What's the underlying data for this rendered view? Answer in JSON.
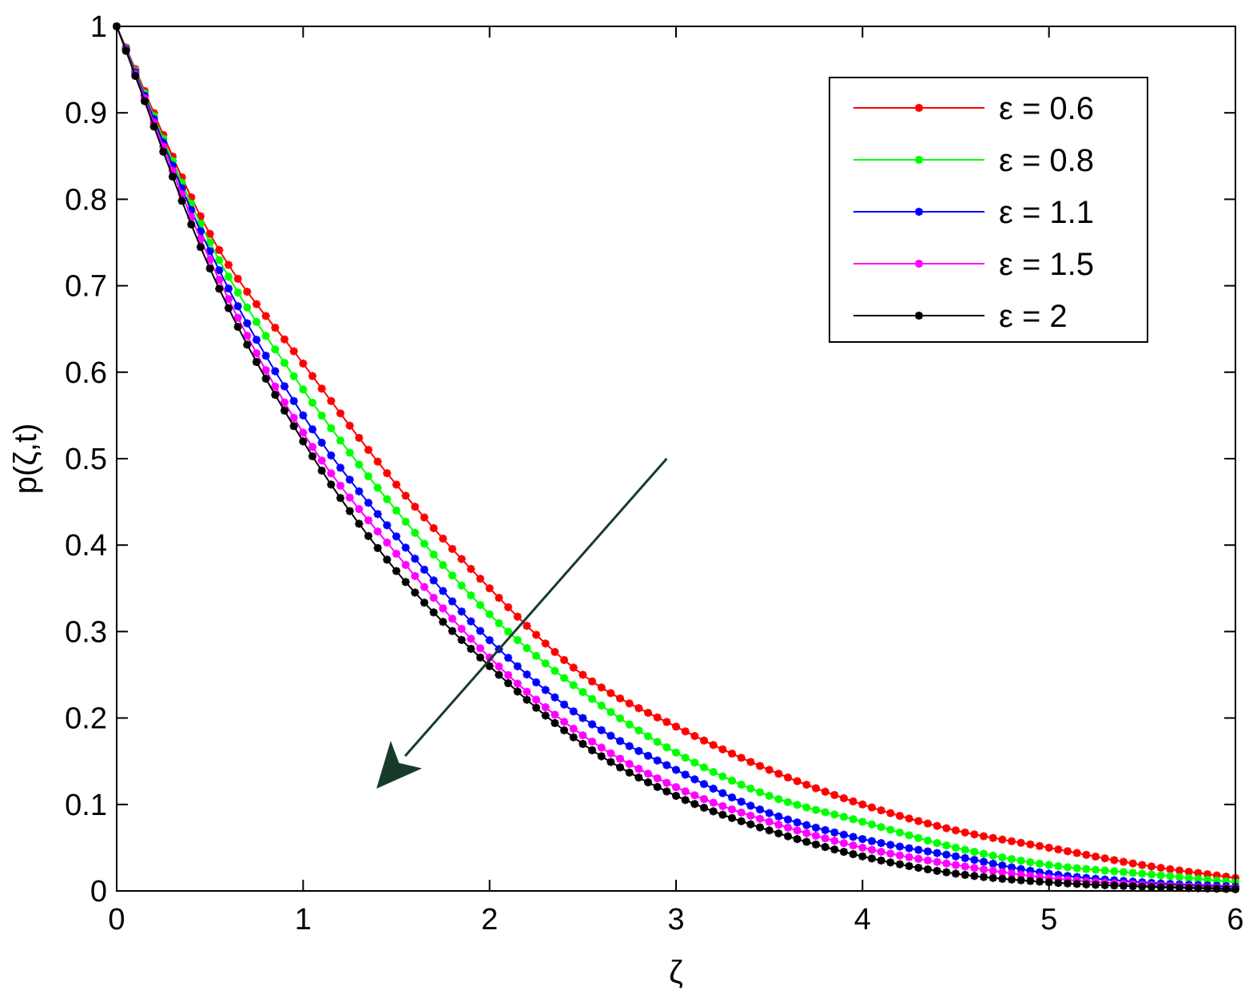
{
  "chart_data": {
    "type": "line",
    "xlabel": "ζ",
    "ylabel": "p(ζ,t)",
    "xlim": [
      0,
      6
    ],
    "ylim": [
      0,
      1
    ],
    "xticks": [
      "0",
      "1",
      "2",
      "3",
      "4",
      "5",
      "6"
    ],
    "yticks": [
      "0",
      "0.1",
      "0.2",
      "0.3",
      "0.4",
      "0.5",
      "0.6",
      "0.7",
      "0.8",
      "0.9",
      "1"
    ],
    "grid": false,
    "legend_position": "top-right",
    "marker": "asterisk",
    "x": [
      0,
      0.5,
      1,
      1.5,
      2,
      2.5,
      3,
      3.5,
      4,
      4.5,
      5,
      5.5,
      6
    ],
    "series": [
      {
        "name": "ε = 0.6",
        "color": "#ff0000",
        "values": [
          1.0,
          0.76,
          0.61,
          0.47,
          0.35,
          0.25,
          0.19,
          0.14,
          0.1,
          0.07,
          0.05,
          0.03,
          0.015
        ]
      },
      {
        "name": "ε = 0.8",
        "color": "#00ff00",
        "values": [
          1.0,
          0.75,
          0.58,
          0.44,
          0.32,
          0.23,
          0.16,
          0.11,
          0.08,
          0.05,
          0.03,
          0.02,
          0.01
        ]
      },
      {
        "name": "ε = 1.1",
        "color": "#0000ff",
        "values": [
          1.0,
          0.74,
          0.55,
          0.41,
          0.29,
          0.2,
          0.14,
          0.09,
          0.06,
          0.04,
          0.02,
          0.01,
          0.005
        ]
      },
      {
        "name": "ε = 1.5",
        "color": "#ff00ff",
        "values": [
          1.0,
          0.73,
          0.53,
          0.39,
          0.27,
          0.18,
          0.12,
          0.08,
          0.05,
          0.03,
          0.015,
          0.007,
          0.003
        ]
      },
      {
        "name": "ε = 2",
        "color": "#000000",
        "values": [
          1.0,
          0.72,
          0.52,
          0.37,
          0.26,
          0.17,
          0.11,
          0.07,
          0.04,
          0.02,
          0.01,
          0.005,
          0.002
        ]
      }
    ],
    "annotation_arrow": {
      "from": [
        2.95,
        0.5
      ],
      "to": [
        1.4,
        0.12
      ],
      "color": "#173b2a"
    }
  }
}
